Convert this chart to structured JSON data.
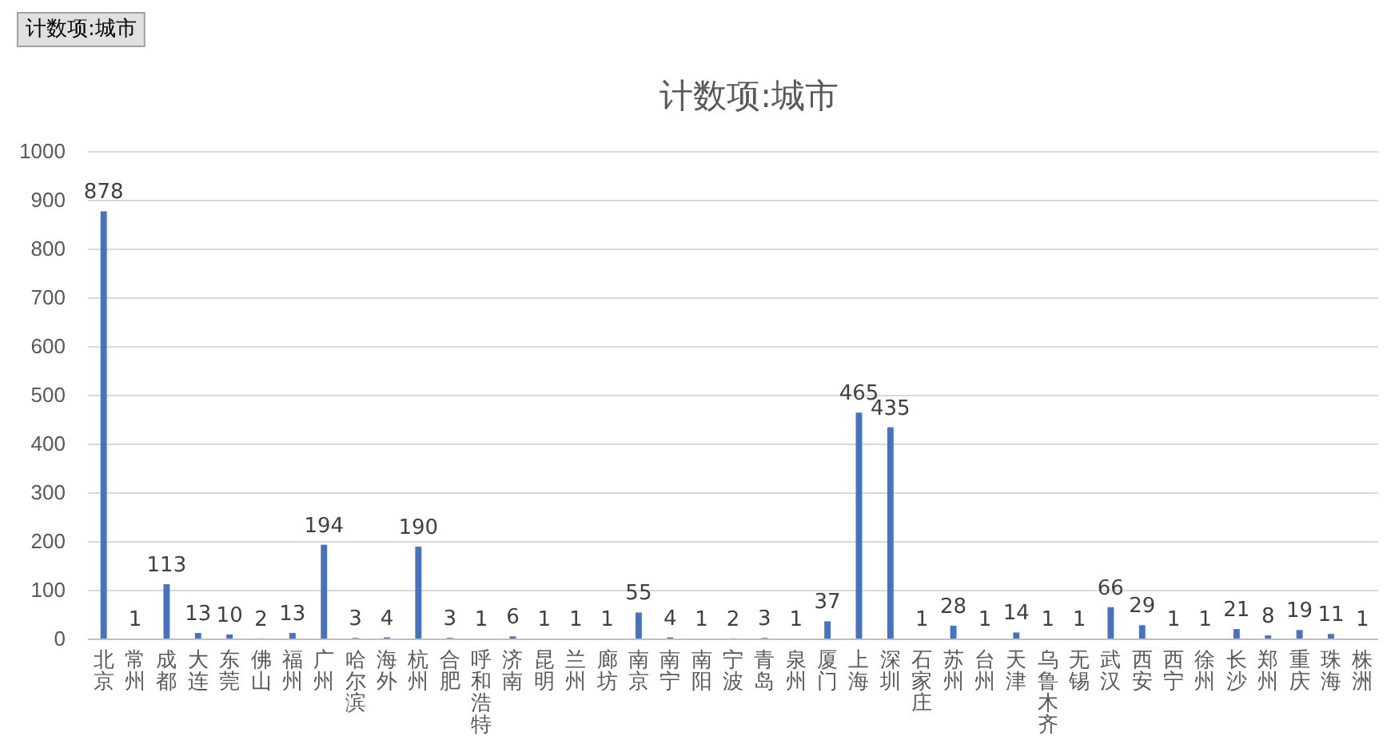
{
  "chart_data": {
    "type": "bar",
    "title": "计数项:城市",
    "annotations": [
      "计数项:城市"
    ],
    "categories": [
      "北京",
      "常州",
      "成都",
      "大连",
      "东莞",
      "佛山",
      "福州",
      "广州",
      "哈尔滨",
      "海外",
      "杭州",
      "合肥",
      "呼和浩特",
      "济南",
      "昆明",
      "兰州",
      "廊坊",
      "南京",
      "南宁",
      "南阳",
      "宁波",
      "青岛",
      "泉州",
      "厦门",
      "上海",
      "深圳",
      "石家庄",
      "苏州",
      "台州",
      "天津",
      "乌鲁木齐",
      "无锡",
      "武汉",
      "西安",
      "西宁",
      "徐州",
      "长沙",
      "郑州",
      "重庆",
      "珠海",
      "株洲"
    ],
    "values": [
      878,
      1,
      113,
      13,
      10,
      2,
      13,
      194,
      3,
      4,
      190,
      3,
      1,
      6,
      1,
      1,
      1,
      55,
      4,
      1,
      2,
      3,
      1,
      37,
      465,
      435,
      1,
      28,
      1,
      14,
      1,
      1,
      66,
      29,
      1,
      1,
      21,
      8,
      19,
      11,
      1
    ],
    "color": "#4472c4",
    "ylim": [
      0,
      1000
    ],
    "yticks": [
      0,
      100,
      200,
      300,
      400,
      500,
      600,
      700,
      800,
      900,
      1000
    ],
    "grid": "y",
    "data_labels": true
  }
}
